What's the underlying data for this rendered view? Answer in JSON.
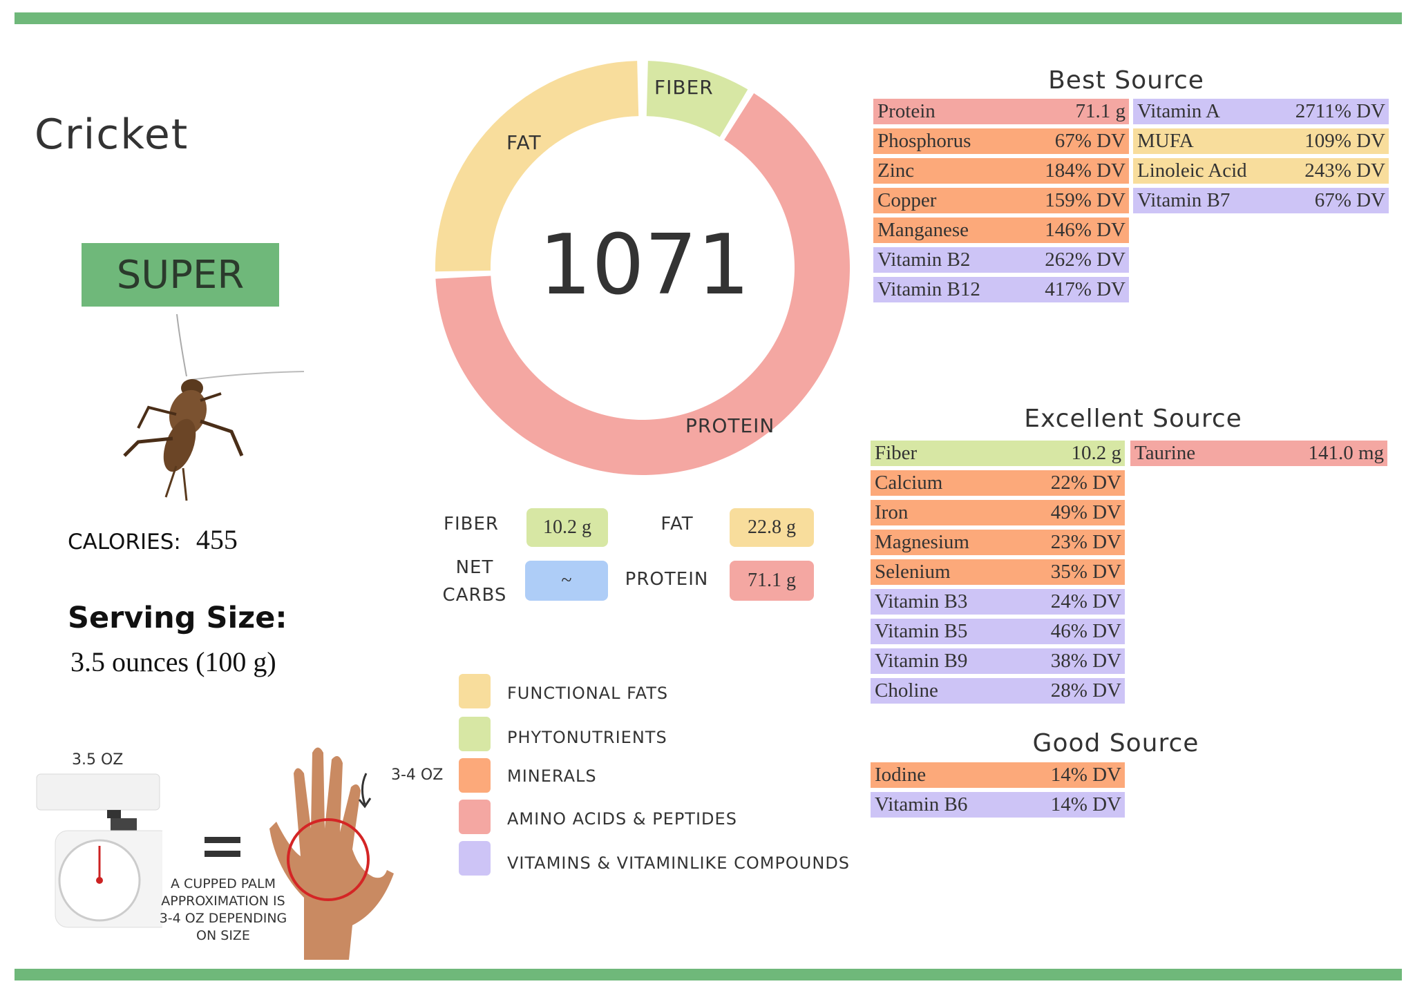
{
  "food": {
    "name": "Cricket",
    "rating": "SUPER",
    "calories_label": "CALORIES:",
    "calories_value": "455",
    "serving_title": "Serving Size:",
    "serving_value": "3.5 ounces (100 g)"
  },
  "donut": {
    "center_value": "1071",
    "segments": [
      {
        "label": "FIBER",
        "color": "#d7e7a4"
      },
      {
        "label": "PROTEIN",
        "color": "#f4a7a2"
      },
      {
        "label": "FAT",
        "color": "#f8dd9c"
      }
    ]
  },
  "macros": {
    "fiber_label": "FIBER",
    "fiber_value": "10.2 g",
    "fat_label": "FAT",
    "fat_value": "22.8 g",
    "netcarbs_label_1": "NET",
    "netcarbs_label_2": "CARBS",
    "netcarbs_value": "~",
    "protein_label": "PROTEIN",
    "protein_value": "71.1 g"
  },
  "legend": [
    {
      "label": "FUNCTIONAL  FATS",
      "color": "#f8dd9c"
    },
    {
      "label": "PHYTONUTRIENTS",
      "color": "#d7e7a4"
    },
    {
      "label": "MINERALS",
      "color": "#fca97a"
    },
    {
      "label": "AMINO ACIDS & PEPTIDES",
      "color": "#f4a7a2"
    },
    {
      "label": "VITAMINS & VITAMINLIKE COMPOUNDS",
      "color": "#cdc4f6"
    }
  ],
  "colors": {
    "accent_green": "#6fb87a",
    "fats": "#f8dd9c",
    "phyto": "#d7e7a4",
    "minerals": "#fca97a",
    "amino": "#f4a7a2",
    "vitamins": "#cdc4f6",
    "carbs": "#aecdf7"
  },
  "serving_visual": {
    "scale_label": "3.5 OZ",
    "hand_label": "3-4 OZ",
    "equals": "=",
    "caption_1": "A CUPPED PALM",
    "caption_2": "APPROXIMATION IS",
    "caption_3": "3-4 OZ DEPENDING",
    "caption_4": "ON SIZE"
  },
  "best_source": {
    "title": "Best Source",
    "left": [
      {
        "name": "Protein",
        "value": "71.1 g",
        "cat": "amino"
      },
      {
        "name": "Phosphorus",
        "value": "67% DV",
        "cat": "minerals"
      },
      {
        "name": "Zinc",
        "value": "184% DV",
        "cat": "minerals"
      },
      {
        "name": "Copper",
        "value": "159% DV",
        "cat": "minerals"
      },
      {
        "name": "Manganese",
        "value": "146% DV",
        "cat": "minerals"
      },
      {
        "name": "Vitamin B2",
        "value": "262% DV",
        "cat": "vitamins"
      },
      {
        "name": "Vitamin B12",
        "value": "417% DV",
        "cat": "vitamins"
      }
    ],
    "right": [
      {
        "name": "Vitamin A",
        "value": "2711% DV",
        "cat": "vitamins"
      },
      {
        "name": "MUFA",
        "value": "109% DV",
        "cat": "fats"
      },
      {
        "name": "Linoleic Acid",
        "value": "243% DV",
        "cat": "fats"
      },
      {
        "name": "Vitamin B7",
        "value": "67% DV",
        "cat": "vitamins"
      }
    ]
  },
  "excellent_source": {
    "title": "Excellent Source",
    "left": [
      {
        "name": "Fiber",
        "value": "10.2 g",
        "cat": "phyto"
      },
      {
        "name": "Calcium",
        "value": "22% DV",
        "cat": "minerals"
      },
      {
        "name": "Iron",
        "value": "49% DV",
        "cat": "minerals"
      },
      {
        "name": "Magnesium",
        "value": "23% DV",
        "cat": "minerals"
      },
      {
        "name": "Selenium",
        "value": "35% DV",
        "cat": "minerals"
      },
      {
        "name": "Vitamin B3",
        "value": "24% DV",
        "cat": "vitamins"
      },
      {
        "name": "Vitamin B5",
        "value": "46% DV",
        "cat": "vitamins"
      },
      {
        "name": "Vitamin B9",
        "value": "38% DV",
        "cat": "vitamins"
      },
      {
        "name": "Choline",
        "value": "28% DV",
        "cat": "vitamins"
      }
    ],
    "right": [
      {
        "name": "Taurine",
        "value": "141.0 mg",
        "cat": "amino"
      }
    ]
  },
  "good_source": {
    "title": "Good Source",
    "left": [
      {
        "name": "Iodine",
        "value": "14% DV",
        "cat": "minerals"
      },
      {
        "name": "Vitamin B6",
        "value": "14% DV",
        "cat": "vitamins"
      }
    ]
  }
}
